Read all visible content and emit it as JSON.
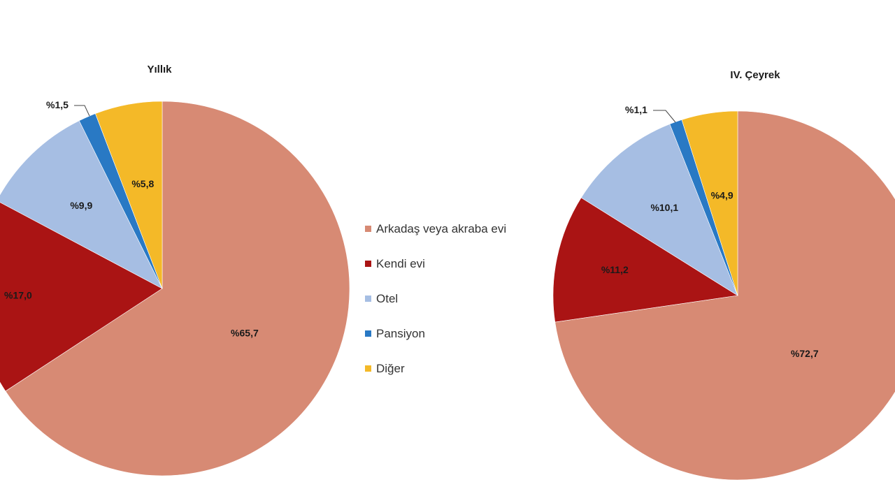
{
  "legend": [
    {
      "key": "arkadas",
      "label": "Arkadaş veya akraba evi",
      "color": "#D78A74"
    },
    {
      "key": "kendi",
      "label": "Kendi evi",
      "color": "#AA1414"
    },
    {
      "key": "otel",
      "label": "Otel",
      "color": "#A6BEE3"
    },
    {
      "key": "pansiyon",
      "label": "Pansiyon",
      "color": "#2979C4"
    },
    {
      "key": "diger",
      "label": "Diğer",
      "color": "#F4B928"
    }
  ],
  "chart_data": [
    {
      "type": "pie",
      "title": "Yıllık",
      "start_angle_deg": 0,
      "direction": "clockwise",
      "slices": [
        {
          "key": "arkadas",
          "value": 65.7,
          "label": "%65,7"
        },
        {
          "key": "kendi",
          "value": 17.0,
          "label": "%17,0"
        },
        {
          "key": "otel",
          "value": 9.9,
          "label": "%9,9"
        },
        {
          "key": "pansiyon",
          "value": 1.5,
          "label": "%1,5"
        },
        {
          "key": "diger",
          "value": 5.8,
          "label": "%5,8"
        }
      ]
    },
    {
      "type": "pie",
      "title": "IV. Çeyrek",
      "start_angle_deg": 0,
      "direction": "clockwise",
      "slices": [
        {
          "key": "arkadas",
          "value": 72.7,
          "label": "%72,7"
        },
        {
          "key": "kendi",
          "value": 11.2,
          "label": "%11,2"
        },
        {
          "key": "otel",
          "value": 10.1,
          "label": "%10,1"
        },
        {
          "key": "pansiyon",
          "value": 1.1,
          "label": "%1,1"
        },
        {
          "key": "diger",
          "value": 4.9,
          "label": "%4,9"
        }
      ]
    }
  ]
}
